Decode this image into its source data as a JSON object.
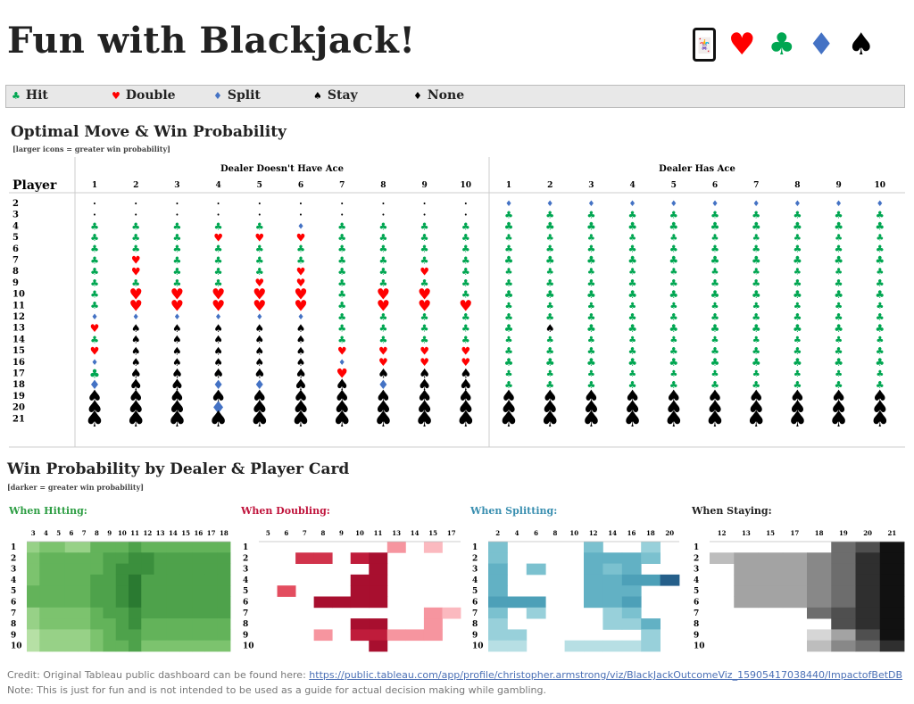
{
  "header": {
    "title": "Fun with Blackjack!",
    "icons": [
      {
        "name": "card-icon",
        "glyph": "🃏",
        "color": "#111111"
      },
      {
        "name": "heart-icon",
        "glyph": "♥",
        "color": "#ff0000"
      },
      {
        "name": "club-icon",
        "glyph": "♣",
        "color": "#00a651"
      },
      {
        "name": "diamond-icon",
        "glyph": "♦",
        "color": "#4472c4"
      },
      {
        "name": "spade-icon",
        "glyph": "♠",
        "color": "#000000"
      }
    ]
  },
  "legend": {
    "items": [
      {
        "label": "Hit",
        "glyph": "♣",
        "color": "#00a651"
      },
      {
        "label": "Double",
        "glyph": "♥",
        "color": "#ff0000"
      },
      {
        "label": "Split",
        "glyph": "♦",
        "color": "#4472c4"
      },
      {
        "label": "Stay",
        "glyph": "♠",
        "color": "#000000"
      },
      {
        "label": "None",
        "glyph": "♦",
        "color": "#000000"
      }
    ]
  },
  "optimal": {
    "title": "Optimal Move & Win Probability",
    "subtitle": "[larger icons = greater win probability]",
    "row_header": "Player",
    "group_left": "Dealer Doesn't Have Ace",
    "group_right": "Dealer Has Ace",
    "dealer_cols": [
      "1",
      "2",
      "3",
      "4",
      "5",
      "6",
      "7",
      "8",
      "9",
      "10"
    ],
    "player_rows": [
      "2",
      "3",
      "4",
      "5",
      "6",
      "7",
      "8",
      "9",
      "10",
      "11",
      "12",
      "13",
      "14",
      "15",
      "16",
      "17",
      "18",
      "19",
      "20",
      "21"
    ],
    "moves_no_ace": [
      "NNNNNNNNNN",
      "NNNNNNNNNN",
      "HHHHHPHHHH",
      "HHHDDDHHHH",
      "HHHHHHHHHH",
      "HDHHHHHHHH",
      "HDHHHDHHDH",
      "HHHHDDHHHH",
      "HDDDDDHDDH",
      "HDDDDDHDDD",
      "PPPPPPHHHH",
      "DSSSSSHHHH",
      "HSSSSSHHHH",
      "DSSSSSDDDD",
      "PSSSSSPDDD",
      "HSSSSSDSSS",
      "PSSPPSSPSS",
      "SSSSSSSSSS",
      "SSSPSSSSSS",
      "SSSSSSSSSS"
    ],
    "moves_ace": [
      "PPPPPPPPPP",
      "HHHHHHHHHH",
      "HHHHHHHHHH",
      "HHHHHHHHHH",
      "HHHHHHHHHH",
      "HHHHHHHHHH",
      "HHHHHHHHHH",
      "HHHHHHHHHH",
      "HHHHHHHHHH",
      "HHHHHHHHHH",
      "HHHHHHHHHH",
      "HSHHHHHHHH",
      "HHHHHHHHHH",
      "HHHHHHHHHH",
      "HHHHHHHHHH",
      "HHHHHHHHHH",
      "HHHHHHHHHH",
      "SSSSSSSSSS",
      "SSSSSSSSSS",
      "SSSSSSSSSS"
    ],
    "move_colors": {
      "H": "#00a651",
      "D": "#ff0000",
      "P": "#4472c4",
      "S": "#000000",
      "N": "#000000"
    },
    "move_glyphs": {
      "H": "♣",
      "D": "♥",
      "P": "♦",
      "S": "♠",
      "N": "•"
    }
  },
  "winprob": {
    "title": "Win Probability by Dealer & Player Card",
    "subtitle": "[darker = greater win probability]",
    "rows": [
      "1",
      "2",
      "3",
      "4",
      "5",
      "6",
      "7",
      "8",
      "9",
      "10"
    ],
    "panels": [
      {
        "title": "When Hitting:",
        "color": "#2e9e44",
        "cols": [
          "3",
          "4",
          "5",
          "6",
          "7",
          "8",
          "9",
          "10",
          "11",
          "12",
          "13",
          "14",
          "15",
          "16",
          "17",
          "18"
        ],
        "values": [
          [
            3,
            4,
            4,
            3,
            3,
            5,
            5,
            5,
            6,
            5,
            5,
            5,
            5,
            5,
            5,
            5
          ],
          [
            4,
            5,
            5,
            5,
            5,
            5,
            6,
            6,
            7,
            7,
            6,
            6,
            6,
            6,
            6,
            6
          ],
          [
            4,
            5,
            5,
            5,
            5,
            5,
            6,
            7,
            7,
            7,
            6,
            6,
            6,
            6,
            6,
            6
          ],
          [
            4,
            5,
            5,
            5,
            5,
            6,
            6,
            7,
            8,
            6,
            6,
            6,
            6,
            6,
            6,
            6
          ],
          [
            5,
            5,
            5,
            5,
            5,
            6,
            6,
            7,
            8,
            6,
            6,
            6,
            6,
            6,
            6,
            6
          ],
          [
            5,
            5,
            5,
            5,
            5,
            6,
            6,
            7,
            8,
            6,
            6,
            6,
            6,
            6,
            6,
            6
          ],
          [
            3,
            4,
            4,
            4,
            4,
            5,
            6,
            6,
            7,
            6,
            6,
            6,
            6,
            6,
            6,
            6
          ],
          [
            3,
            4,
            4,
            4,
            4,
            5,
            5,
            6,
            7,
            5,
            5,
            5,
            5,
            5,
            5,
            5
          ],
          [
            2,
            3,
            3,
            3,
            3,
            4,
            5,
            6,
            6,
            5,
            5,
            5,
            5,
            5,
            5,
            5
          ],
          [
            2,
            3,
            3,
            3,
            3,
            4,
            5,
            5,
            6,
            4,
            4,
            4,
            4,
            4,
            4,
            4
          ]
        ]
      },
      {
        "title": "When Doubling:",
        "color": "#c0143c",
        "cols": [
          "5",
          "6",
          "7",
          "8",
          "9",
          "10",
          "11",
          "13",
          "14",
          "15",
          "17"
        ],
        "values": [
          [
            0,
            0,
            0,
            0,
            0,
            0,
            0,
            3,
            0,
            2,
            0
          ],
          [
            0,
            0,
            6,
            6,
            0,
            7,
            8,
            0,
            0,
            0,
            0
          ],
          [
            0,
            0,
            0,
            0,
            0,
            0,
            8,
            0,
            0,
            0,
            0
          ],
          [
            0,
            0,
            0,
            0,
            0,
            8,
            8,
            0,
            0,
            0,
            0
          ],
          [
            0,
            5,
            0,
            0,
            0,
            8,
            8,
            0,
            0,
            0,
            0
          ],
          [
            0,
            0,
            0,
            8,
            8,
            8,
            8,
            0,
            0,
            0,
            0
          ],
          [
            0,
            0,
            0,
            0,
            0,
            0,
            0,
            0,
            0,
            3,
            2
          ],
          [
            0,
            0,
            0,
            0,
            0,
            8,
            8,
            0,
            0,
            3,
            0
          ],
          [
            0,
            0,
            0,
            3,
            0,
            7,
            7,
            3,
            3,
            3,
            0
          ],
          [
            0,
            0,
            0,
            0,
            0,
            0,
            8,
            0,
            0,
            0,
            0
          ]
        ]
      },
      {
        "title": "When Splitting:",
        "color": "#3a8fb0",
        "cols": [
          "2",
          "4",
          "6",
          "8",
          "10",
          "12",
          "14",
          "16",
          "18",
          "20"
        ],
        "values": [
          [
            4,
            0,
            0,
            0,
            0,
            4,
            0,
            0,
            3,
            0
          ],
          [
            4,
            0,
            0,
            0,
            0,
            5,
            5,
            5,
            4,
            0
          ],
          [
            5,
            0,
            4,
            0,
            0,
            5,
            4,
            5,
            0,
            0
          ],
          [
            5,
            0,
            0,
            0,
            0,
            5,
            5,
            6,
            6,
            9
          ],
          [
            5,
            0,
            0,
            0,
            0,
            5,
            5,
            5,
            0,
            0
          ],
          [
            6,
            6,
            6,
            0,
            0,
            5,
            5,
            6,
            0,
            0
          ],
          [
            4,
            0,
            3,
            0,
            0,
            0,
            3,
            4,
            0,
            0
          ],
          [
            3,
            0,
            0,
            0,
            0,
            0,
            3,
            3,
            5,
            0
          ],
          [
            3,
            3,
            0,
            0,
            0,
            0,
            0,
            0,
            3,
            0
          ],
          [
            2,
            2,
            0,
            0,
            2,
            2,
            2,
            2,
            3,
            0
          ]
        ]
      },
      {
        "title": "When Staying:",
        "color": "#222222",
        "cols": [
          "12",
          "13",
          "15",
          "17",
          "18",
          "19",
          "20",
          "21"
        ],
        "values": [
          [
            0,
            0,
            0,
            0,
            0,
            6,
            7,
            9
          ],
          [
            3,
            4,
            4,
            4,
            5,
            6,
            8,
            9
          ],
          [
            0,
            4,
            4,
            4,
            5,
            6,
            8,
            9
          ],
          [
            0,
            4,
            4,
            4,
            5,
            6,
            8,
            9
          ],
          [
            0,
            4,
            4,
            4,
            5,
            6,
            8,
            9
          ],
          [
            0,
            4,
            4,
            4,
            5,
            6,
            8,
            9
          ],
          [
            0,
            0,
            0,
            0,
            6,
            7,
            8,
            9
          ],
          [
            0,
            0,
            0,
            0,
            0,
            7,
            8,
            9
          ],
          [
            0,
            0,
            0,
            0,
            2,
            4,
            7,
            9
          ],
          [
            0,
            0,
            0,
            0,
            3,
            5,
            6,
            8
          ]
        ]
      }
    ]
  },
  "footer": {
    "credit_prefix": "Credit:  Original Tableau public dashboard can be found here: ",
    "credit_link": "https://public.tableau.com/app/profile/christopher.armstrong/viz/BlackJackOutcomeViz_15905417038440/ImpactofBetDB",
    "note": "Note: This is just for fun and is not intended to be used as a guide for actual decision making while gambling."
  }
}
